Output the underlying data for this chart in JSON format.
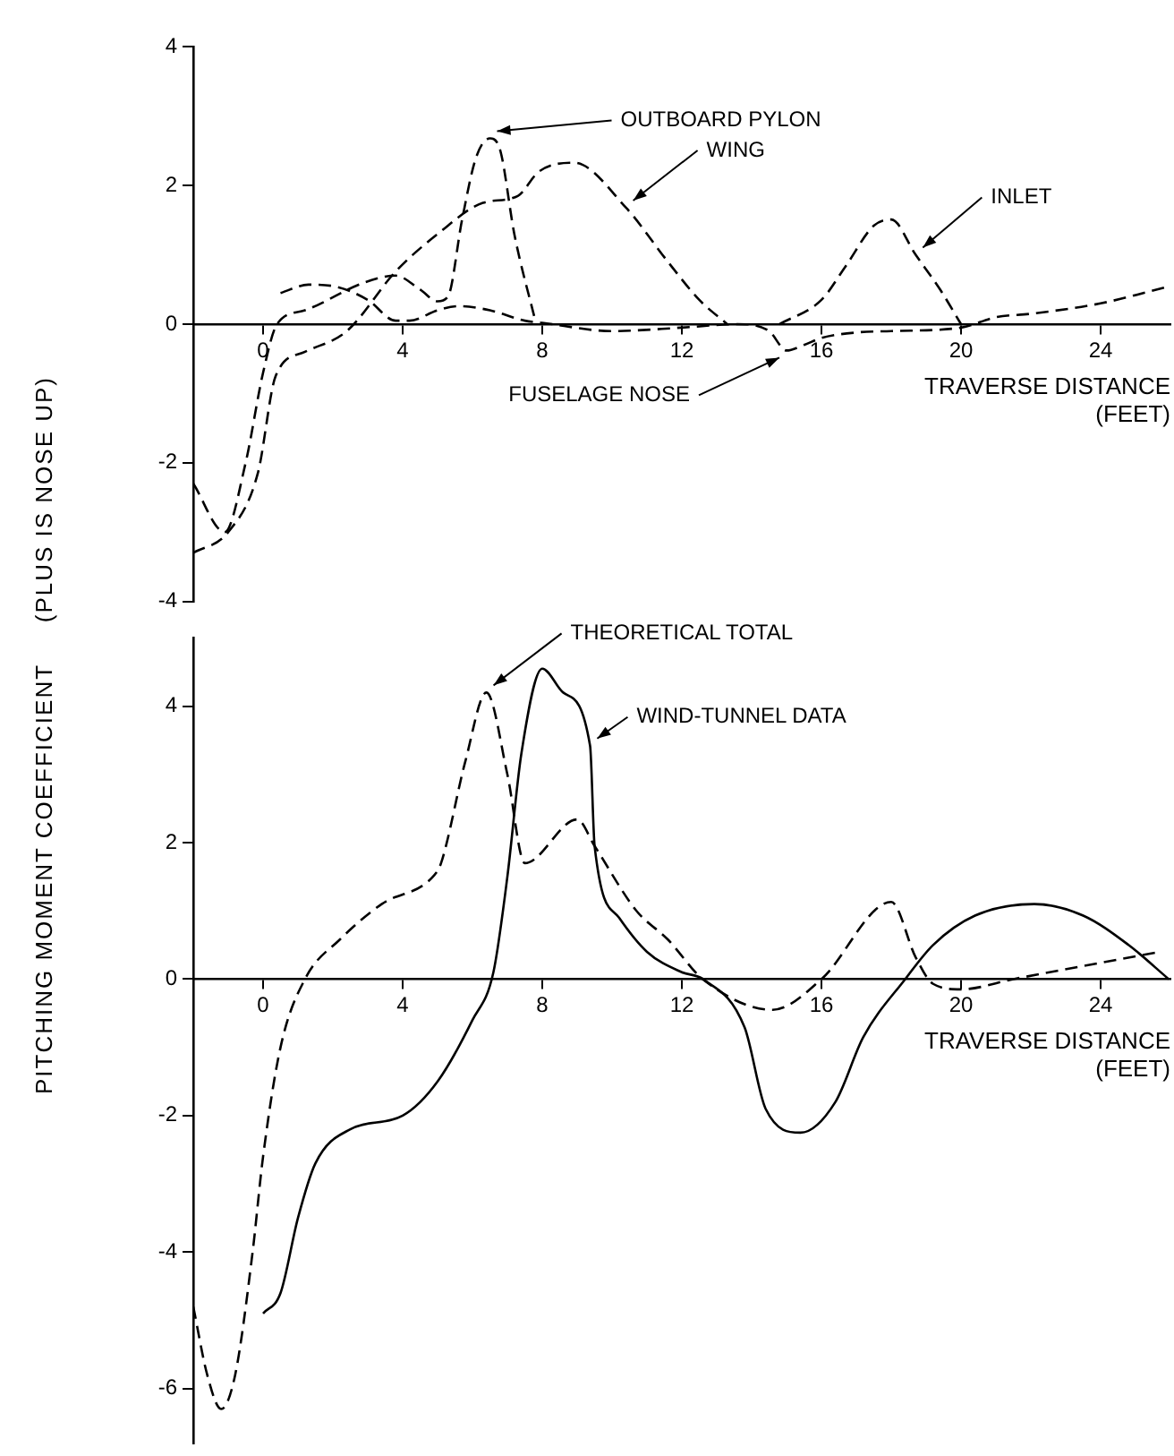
{
  "chart_data": [
    {
      "type": "line",
      "ylabel": "PITCHING MOMENT COEFFICIENT     (PLUS IS NOSE UP)",
      "xlabel": "TRAVERSE DISTANCE\n(FEET)",
      "xlim": [
        -2,
        26
      ],
      "xticks": [
        0,
        4,
        8,
        12,
        16,
        20,
        24
      ],
      "ylim": [
        -4,
        4
      ],
      "yticks": [
        -4,
        -2,
        0,
        2,
        4
      ],
      "line_style": "dashed",
      "series": [
        {
          "name": "OUTBOARD PYLON",
          "color": "#000000",
          "x": [
            -2,
            -1.1,
            -0.5,
            0,
            0.4,
            1.2,
            2.9,
            3.8,
            4.5,
            5.0,
            5.3,
            5.7,
            6.1,
            6.5,
            6.8,
            7.2,
            7.8
          ],
          "values": [
            -2.3,
            -3.0,
            -2.0,
            -0.7,
            0,
            0.2,
            0.6,
            0.7,
            0.5,
            0.33,
            0.4,
            1.5,
            2.4,
            2.68,
            2.5,
            1.3,
            0.05
          ]
        },
        {
          "name": "WING",
          "color": "#000000",
          "x": [
            -2,
            -1,
            -0.15,
            0.36,
            1.2,
            2.4,
            3.8,
            5.0,
            6.3,
            7.3,
            7.9,
            8.9,
            10.4,
            11.6,
            12.5,
            13.3
          ],
          "values": [
            -3.3,
            -3.0,
            -2.15,
            -0.75,
            -0.4,
            -0.1,
            0.76,
            1.3,
            1.75,
            1.85,
            2.2,
            2.33,
            1.68,
            0.9,
            0.35,
            0
          ]
        },
        {
          "name": "INLET",
          "color": "#000000",
          "x": [
            14.8,
            16,
            16.7,
            17.5,
            18.0,
            18.7,
            19.4,
            20
          ],
          "values": [
            0,
            0.35,
            0.84,
            1.42,
            1.51,
            1.0,
            0.5,
            0
          ]
        },
        {
          "name": "FUSELAGE NOSE",
          "color": "#000000",
          "x": [
            0.5,
            1.3,
            2,
            3,
            3.8,
            4.2,
            5,
            5.6,
            6.5,
            7.5,
            8,
            10,
            12,
            13.6,
            14.5,
            15,
            15.5,
            16,
            17,
            18,
            20,
            21,
            22,
            24,
            26
          ],
          "values": [
            0.45,
            0.57,
            0.55,
            0.35,
            0.05,
            0.05,
            0.2,
            0.26,
            0.2,
            0.05,
            0.02,
            -0.1,
            -0.05,
            0,
            -0.1,
            -0.38,
            -0.3,
            -0.2,
            -0.12,
            -0.1,
            -0.05,
            0.1,
            0.15,
            0.3,
            0.55
          ]
        }
      ]
    },
    {
      "type": "line",
      "xlabel": "TRAVERSE DISTANCE\n(FEET)",
      "xlim": [
        -2,
        26
      ],
      "xticks": [
        0,
        4,
        8,
        12,
        16,
        20,
        24
      ],
      "ylim": [
        -6.8,
        5
      ],
      "yticks": [
        -6,
        -4,
        -2,
        0,
        2,
        4
      ],
      "series": [
        {
          "name": "THEORETICAL TOTAL",
          "color": "#000000",
          "line_style": "dashed",
          "x": [
            -2,
            -1.6,
            -1.2,
            -0.8,
            -0.3,
            0,
            0.5,
            1.2,
            2.2,
            3.4,
            4.9,
            5.1,
            5.8,
            6.4,
            7.0,
            7.5,
            9.0,
            9.5,
            10.7,
            11.6,
            12.6,
            14.6,
            16,
            18.0,
            18.7,
            19.2,
            20,
            21.5,
            25.7
          ],
          "values": [
            -4.8,
            -5.8,
            -6.3,
            -5.8,
            -4,
            -2.6,
            -1,
            0,
            0.58,
            1.1,
            1.52,
            1.7,
            3.2,
            4.2,
            3.0,
            1.7,
            2.34,
            1.95,
            1.0,
            0.58,
            0,
            -0.45,
            0,
            1.13,
            0.32,
            -0.07,
            -0.15,
            0,
            0.4
          ]
        },
        {
          "name": "WIND-TUNNEL DATA",
          "color": "#000000",
          "line_style": "solid",
          "x": [
            0,
            0.5,
            1,
            1.5,
            2.5,
            4,
            5,
            6,
            6.6,
            7.0,
            7.4,
            8.0,
            8.6,
            9.37,
            9.5,
            10.2,
            11,
            12,
            12.6,
            13.8,
            14.4,
            15.4,
            16.4,
            17.2,
            18.4,
            19.2,
            20.4,
            22.1,
            23.5,
            24.8,
            25.95
          ],
          "values": [
            -4.9,
            -4.6,
            -3.5,
            -2.7,
            -2.2,
            -2.0,
            -1.5,
            -0.6,
            0.1,
            1.5,
            3.3,
            4.55,
            4.2,
            3.42,
            1.95,
            0.9,
            0.4,
            0.1,
            0,
            -0.71,
            -1.9,
            -2.25,
            -1.8,
            -0.85,
            0,
            0.5,
            0.93,
            1.1,
            0.93,
            0.5,
            0
          ]
        }
      ]
    }
  ]
}
